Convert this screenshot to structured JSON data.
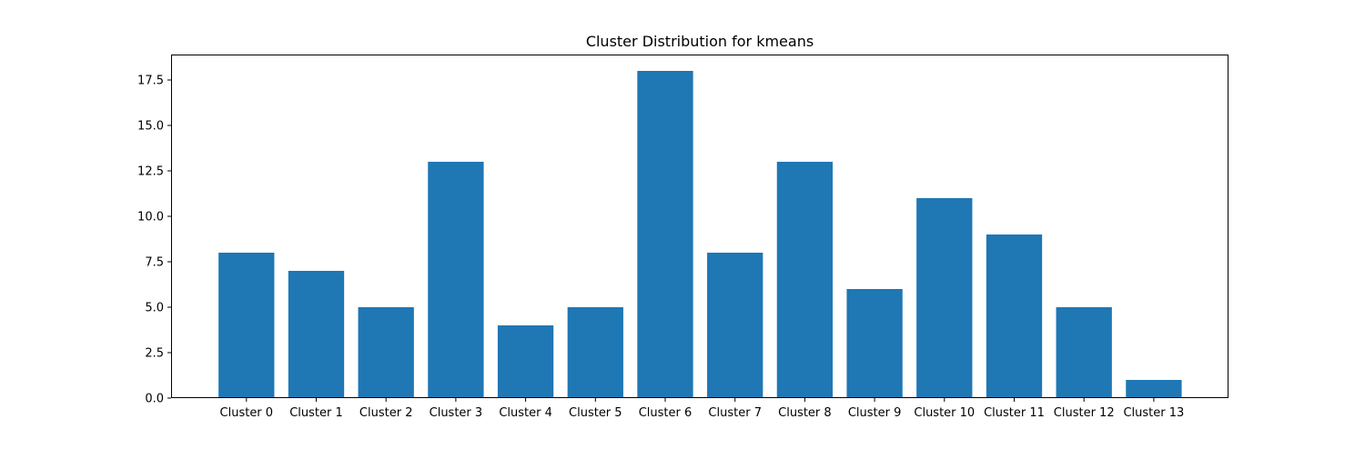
{
  "chart_data": {
    "type": "bar",
    "title": "Cluster Distribution for kmeans",
    "xlabel": "",
    "ylabel": "",
    "categories": [
      "Cluster 0",
      "Cluster 1",
      "Cluster 2",
      "Cluster 3",
      "Cluster 4",
      "Cluster 5",
      "Cluster 6",
      "Cluster 7",
      "Cluster 8",
      "Cluster 9",
      "Cluster 10",
      "Cluster 11",
      "Cluster 12",
      "Cluster 13"
    ],
    "values": [
      8,
      7,
      5,
      13,
      4,
      5,
      18,
      8,
      13,
      6,
      11,
      9,
      5,
      1
    ],
    "ylim": [
      0,
      18.9
    ],
    "yticks": [
      "0.0",
      "2.5",
      "5.0",
      "7.5",
      "10.0",
      "12.5",
      "15.0",
      "17.5"
    ],
    "bar_color": "#1f77b4",
    "grid": false,
    "legend": "none"
  }
}
